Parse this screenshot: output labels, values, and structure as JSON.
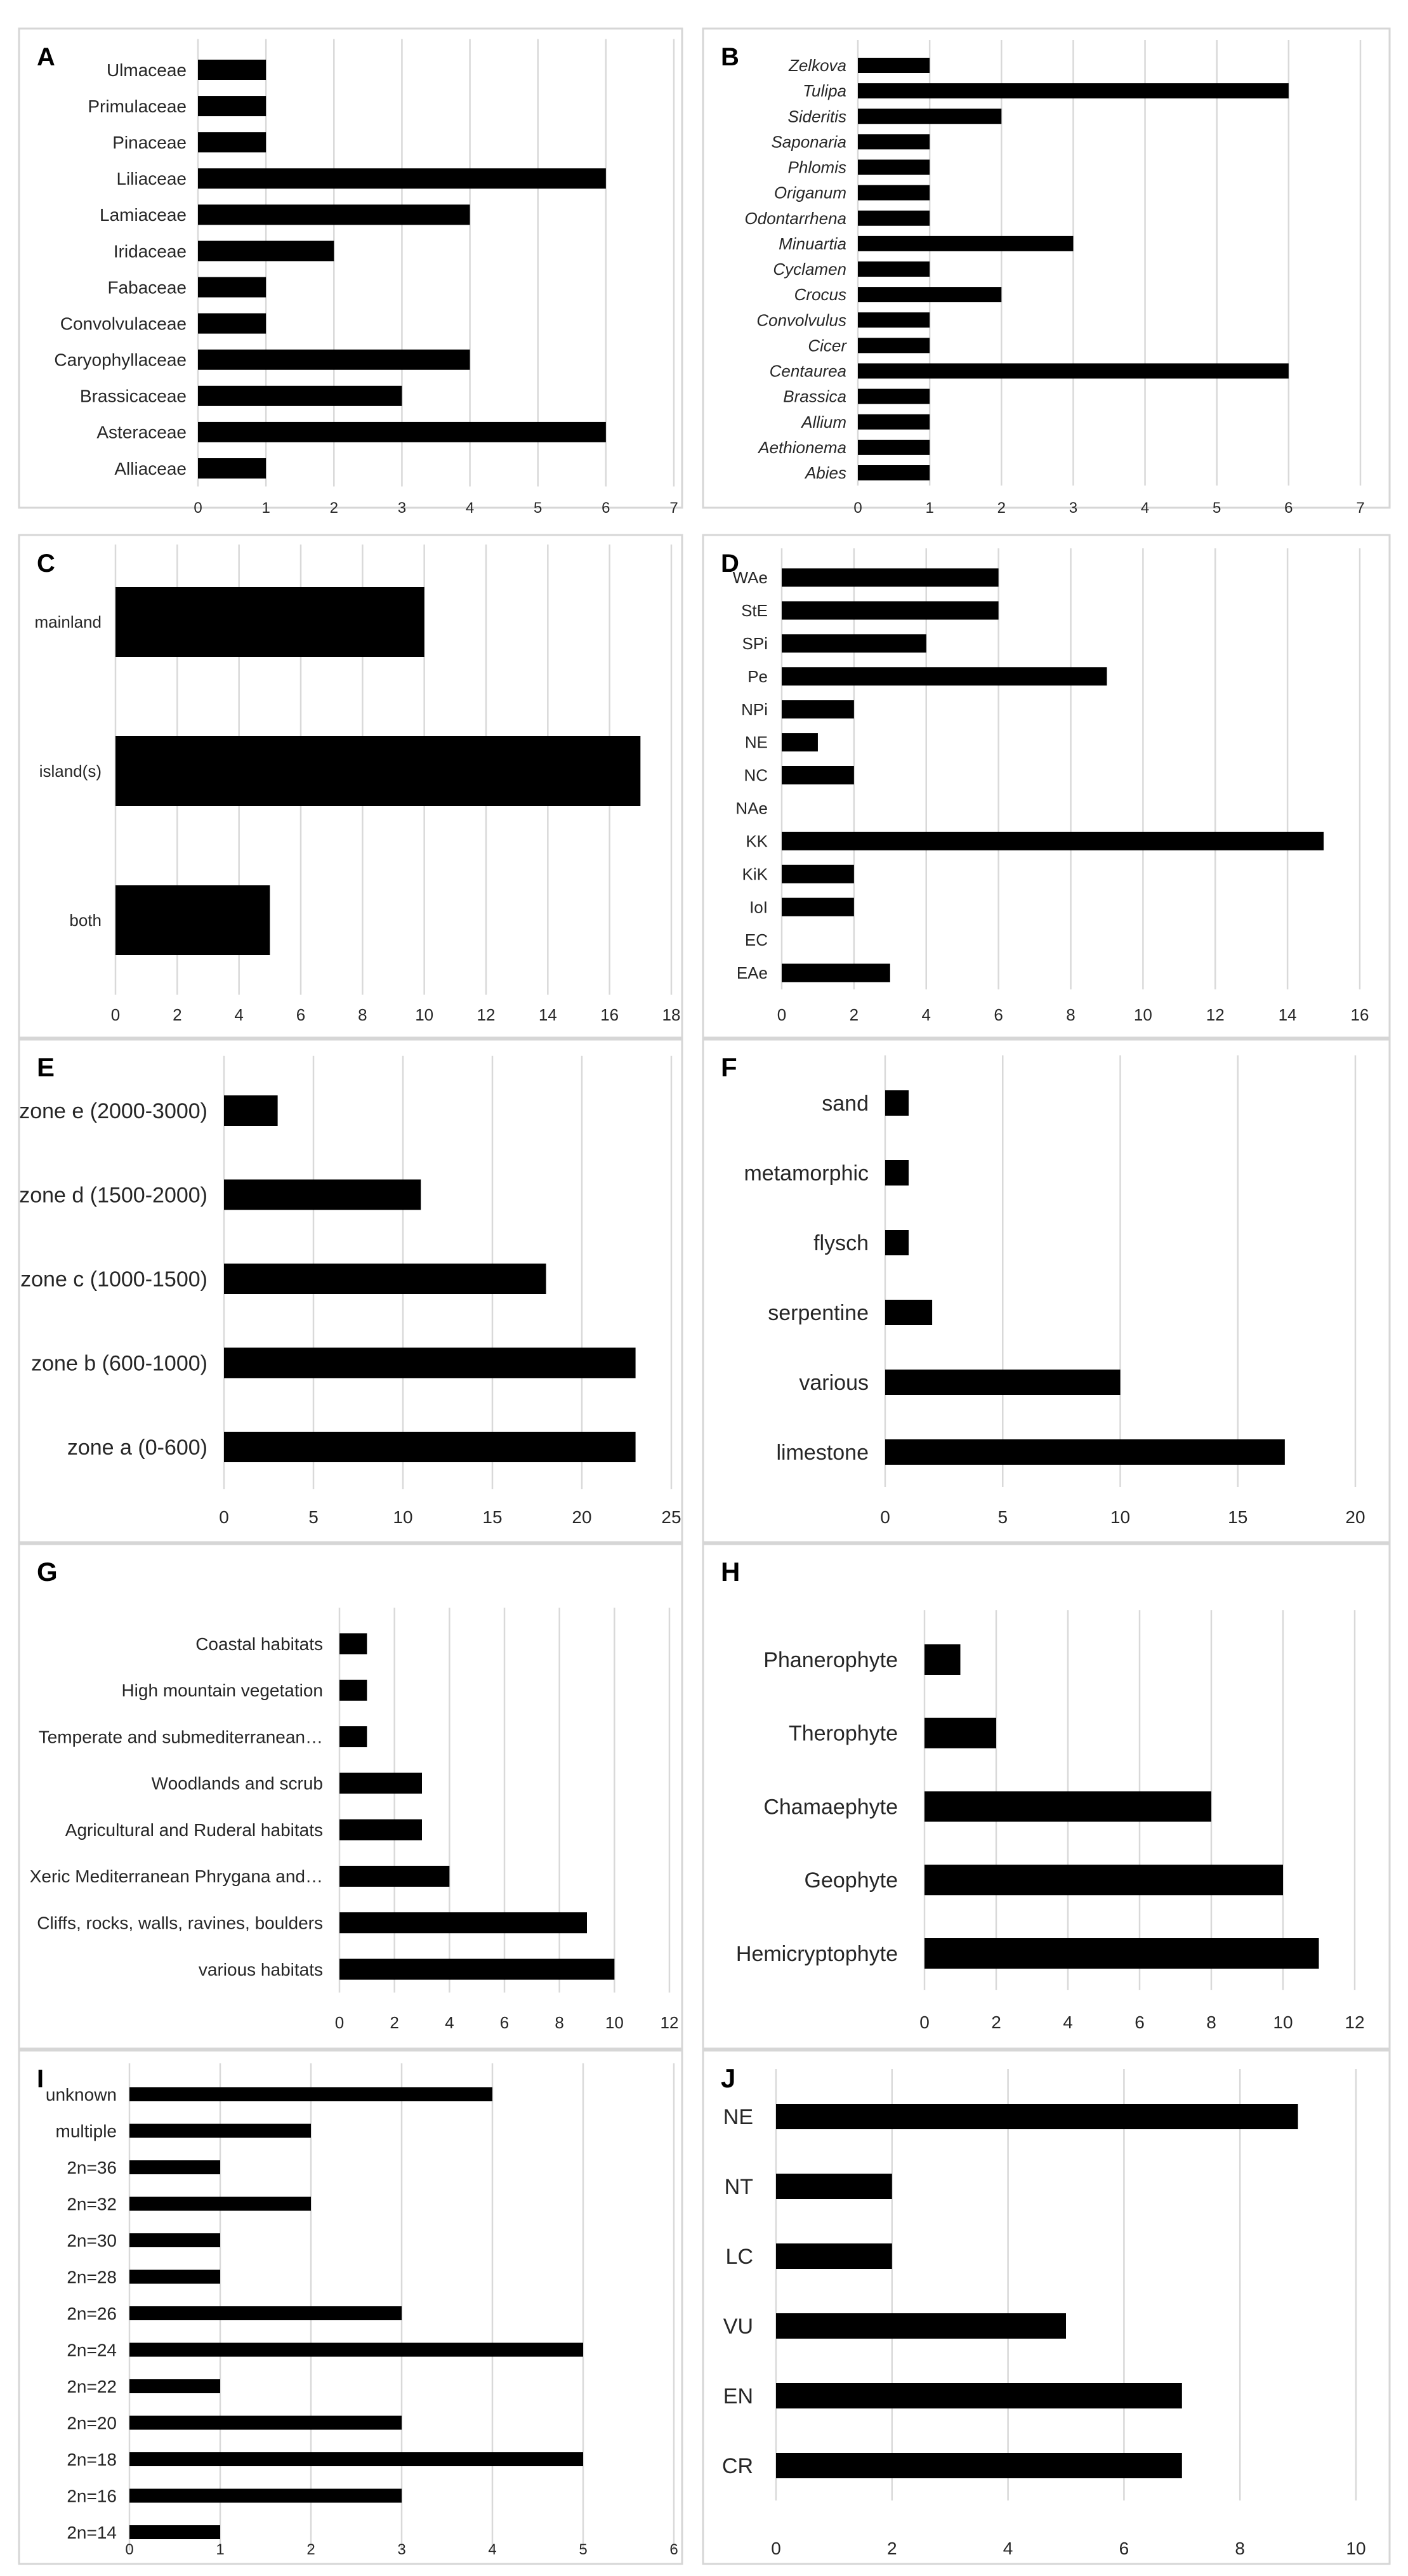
{
  "chart_data": [
    {
      "panel": "A",
      "type": "bar",
      "orientation": "horizontal",
      "categories": [
        "Ulmaceae",
        "Primulaceae",
        "Pinaceae",
        "Liliaceae",
        "Lamiaceae",
        "Iridaceae",
        "Fabaceae",
        "Convolvulaceae",
        "Caryophyllaceae",
        "Brassicaceae",
        "Asteraceae",
        "Alliaceae"
      ],
      "values": [
        1,
        1,
        1,
        6,
        4,
        2,
        1,
        1,
        4,
        3,
        6,
        1
      ],
      "xlim": [
        0,
        7
      ],
      "xticks": [
        0,
        1,
        2,
        3,
        4,
        5,
        6,
        7
      ],
      "grid": true,
      "italic": false
    },
    {
      "panel": "B",
      "type": "bar",
      "orientation": "horizontal",
      "categories": [
        "Zelkova",
        "Tulipa",
        "Sideritis",
        "Saponaria",
        "Phlomis",
        "Origanum",
        "Odontarrhena",
        "Minuartia",
        "Cyclamen",
        "Crocus",
        "Convolvulus",
        "Cicer",
        "Centaurea",
        "Brassica",
        "Allium",
        "Aethionema",
        "Abies"
      ],
      "values": [
        1,
        6,
        2,
        1,
        1,
        1,
        1,
        3,
        1,
        2,
        1,
        1,
        6,
        1,
        1,
        1,
        1
      ],
      "xlim": [
        0,
        7
      ],
      "xticks": [
        0,
        1,
        2,
        3,
        4,
        5,
        6,
        7
      ],
      "grid": true,
      "italic": true
    },
    {
      "panel": "C",
      "type": "bar",
      "orientation": "horizontal",
      "categories": [
        "mainland",
        "island(s)",
        "both"
      ],
      "values": [
        10,
        17,
        5
      ],
      "xlim": [
        0,
        18
      ],
      "xticks": [
        0,
        2,
        4,
        6,
        8,
        10,
        12,
        14,
        16,
        18
      ],
      "grid": true,
      "italic": false
    },
    {
      "panel": "D",
      "type": "bar",
      "orientation": "horizontal",
      "categories": [
        "WAe",
        "StE",
        "SPi",
        "Pe",
        "NPi",
        "NE",
        "NC",
        "NAe",
        "KK",
        "KiK",
        "IoI",
        "EC",
        "EAe"
      ],
      "values": [
        6,
        6,
        4,
        9,
        2,
        1,
        2,
        0,
        15,
        2,
        2,
        0,
        3
      ],
      "xlim": [
        0,
        16
      ],
      "xticks": [
        0,
        2,
        4,
        6,
        8,
        10,
        12,
        14,
        16
      ],
      "grid": true,
      "italic": false
    },
    {
      "panel": "E",
      "type": "bar",
      "orientation": "horizontal",
      "categories": [
        "zone e (2000-3000)",
        "zone d (1500-2000)",
        "zone c (1000-1500)",
        "zone b (600-1000)",
        "zone a (0-600)"
      ],
      "values": [
        3,
        11,
        18,
        23,
        23
      ],
      "xlim": [
        0,
        25
      ],
      "xticks": [
        0,
        5,
        10,
        15,
        20,
        25
      ],
      "grid": true,
      "italic": false
    },
    {
      "panel": "F",
      "type": "bar",
      "orientation": "horizontal",
      "categories": [
        "sand",
        "metamorphic",
        "flysch",
        "serpentine",
        "various",
        "limestone"
      ],
      "values": [
        1,
        1,
        1,
        2,
        10,
        17
      ],
      "xlim": [
        0,
        20
      ],
      "xticks": [
        0,
        5,
        10,
        15,
        20
      ],
      "grid": true,
      "italic": false
    },
    {
      "panel": "G",
      "type": "bar",
      "orientation": "horizontal",
      "categories": [
        "Coastal habitats",
        "High mountain vegetation",
        "Temperate and submediterranean…",
        "Woodlands and scrub",
        "Agricultural and Ruderal habitats",
        "Xeric Mediterranean Phrygana and…",
        "Cliffs, rocks, walls, ravines, boulders",
        "various habitats"
      ],
      "values": [
        1,
        1,
        1,
        3,
        3,
        4,
        9,
        10
      ],
      "xlim": [
        0,
        12
      ],
      "xticks": [
        0,
        2,
        4,
        6,
        8,
        10,
        12
      ],
      "grid": true,
      "italic": false
    },
    {
      "panel": "H",
      "type": "bar",
      "orientation": "horizontal",
      "categories": [
        "Phanerophyte",
        "Therophyte",
        "Chamaephyte",
        "Geophyte",
        "Hemicryptophyte"
      ],
      "values": [
        1,
        2,
        8,
        10,
        11
      ],
      "xlim": [
        0,
        12
      ],
      "xticks": [
        0,
        2,
        4,
        6,
        8,
        10,
        12
      ],
      "grid": true,
      "italic": false
    },
    {
      "panel": "I",
      "type": "bar",
      "orientation": "horizontal",
      "categories": [
        "unknown",
        "multiple",
        "2n=36",
        "2n=32",
        "2n=30",
        "2n=28",
        "2n=26",
        "2n=24",
        "2n=22",
        "2n=20",
        "2n=18",
        "2n=16",
        "2n=14"
      ],
      "values": [
        4,
        2,
        1,
        2,
        1,
        1,
        3,
        5,
        1,
        3,
        5,
        3,
        1
      ],
      "xlim": [
        0,
        6
      ],
      "xticks": [
        0,
        1,
        2,
        3,
        4,
        5,
        6
      ],
      "grid": true,
      "italic": false
    },
    {
      "panel": "J",
      "type": "bar",
      "orientation": "horizontal",
      "categories": [
        "NE",
        "NT",
        "LC",
        "VU",
        "EN",
        "CR"
      ],
      "values": [
        9,
        2,
        2,
        5,
        7,
        7
      ],
      "xlim": [
        0,
        10
      ],
      "xticks": [
        0,
        2,
        4,
        6,
        8,
        10
      ],
      "grid": true,
      "italic": false
    }
  ],
  "colors": {
    "bar": "#000000",
    "grid": "#d9d9d9",
    "frame": "#d6d6d6",
    "text": "#262626"
  }
}
